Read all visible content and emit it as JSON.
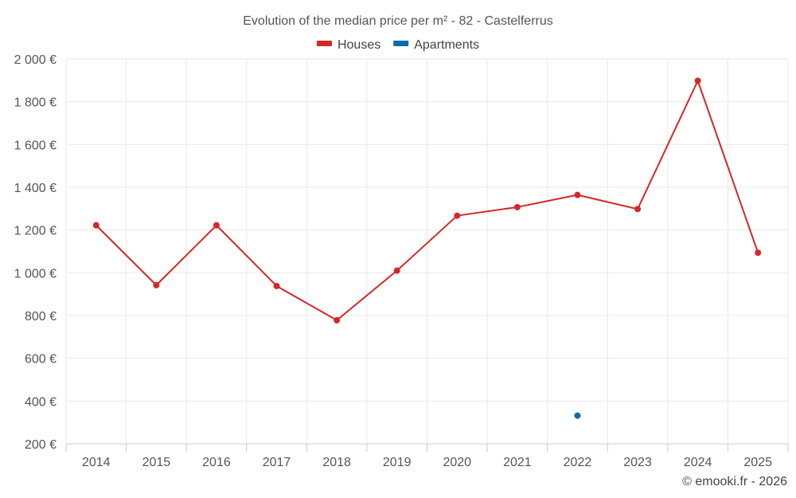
{
  "chart_data": {
    "type": "line",
    "title": "Evolution of the median price per m² - 82 - Castelferrus",
    "categories": [
      "2014",
      "2015",
      "2016",
      "2017",
      "2018",
      "2019",
      "2020",
      "2021",
      "2022",
      "2023",
      "2024",
      "2025"
    ],
    "series": [
      {
        "name": "Houses",
        "color": "#d62728",
        "values": [
          1222,
          942,
          1222,
          938,
          778,
          1010,
          1267,
          1307,
          1364,
          1298,
          1898,
          1094
        ]
      },
      {
        "name": "Apartments",
        "color": "#0e6aa8",
        "values": [
          null,
          null,
          null,
          null,
          null,
          null,
          null,
          null,
          332,
          null,
          null,
          null
        ]
      }
    ],
    "ylim": [
      200,
      2000
    ],
    "yticks": [
      200,
      400,
      600,
      800,
      1000,
      1200,
      1400,
      1600,
      1800,
      2000
    ],
    "ytick_labels": [
      "200 €",
      "400 €",
      "600 €",
      "800 €",
      "1 000 €",
      "1 200 €",
      "1 400 €",
      "1 600 €",
      "1 800 €",
      "2 000 €"
    ],
    "xlabel": "",
    "ylabel": "",
    "grid": true,
    "legend_position": "top-center"
  },
  "credit": "© emooki.fr - 2026"
}
